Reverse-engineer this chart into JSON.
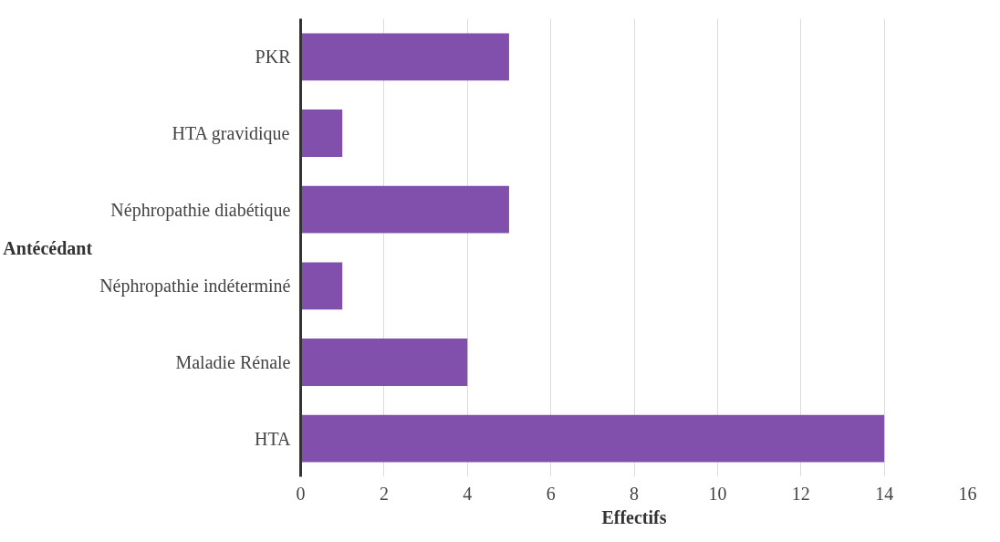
{
  "chart_data": {
    "type": "bar",
    "orientation": "horizontal",
    "ylabel": "Antécédant",
    "xlabel": "Effectifs",
    "categories": [
      "PKR",
      "HTA gravidique",
      "Néphropathie diabétique",
      "Néphropathie indéterminé",
      "Maladie Rénale",
      "HTA"
    ],
    "values": [
      5,
      1,
      5,
      1,
      4,
      14
    ],
    "color": "#8150ac",
    "xlim": [
      0,
      16
    ],
    "xticks": [
      0,
      2,
      4,
      6,
      8,
      10,
      12,
      14,
      16
    ],
    "grid": "x"
  }
}
